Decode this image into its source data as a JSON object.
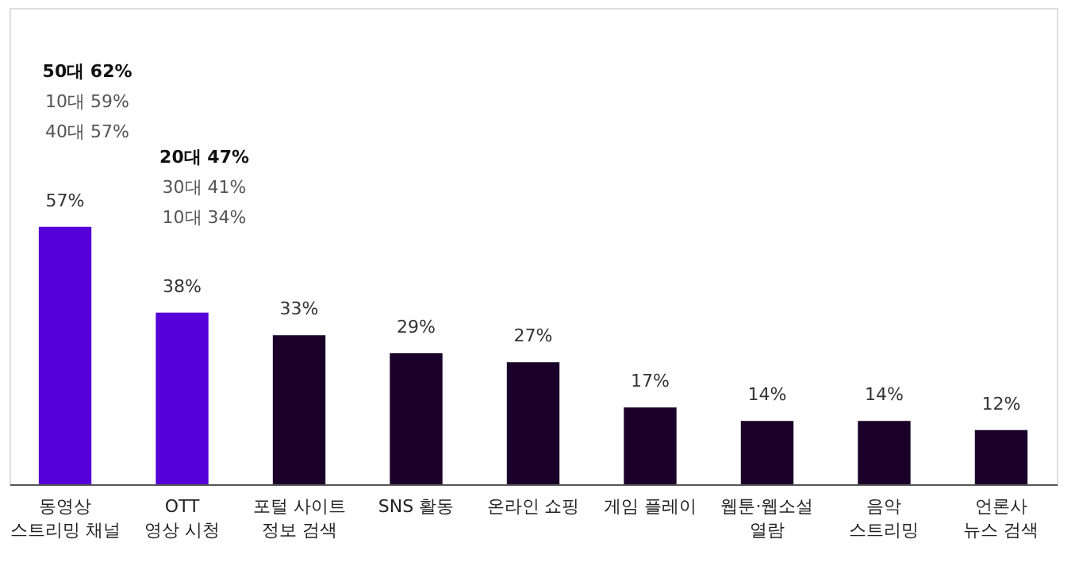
{
  "chart_data": {
    "type": "bar",
    "categories": [
      "동영상\n스트리밍 채널",
      "OTT\n영상 시청",
      "포털 사이트\n정보 검색",
      "SNS 활동",
      "온라인 쇼핑",
      "게임 플레이",
      "웹툰·웹소설\n열람",
      "음악\n스트리밍",
      "언론사\n뉴스 검색"
    ],
    "values": [
      57,
      38,
      33,
      29,
      27,
      17,
      14,
      14,
      12
    ],
    "colors": [
      "#5500d9",
      "#5500d9",
      "#1a0028",
      "#1a0028",
      "#1a0028",
      "#1a0028",
      "#1a0028",
      "#1a0028",
      "#1a0028"
    ],
    "value_labels": [
      "57%",
      "38%",
      "33%",
      "29%",
      "27%",
      "17%",
      "14%",
      "14%",
      "12%"
    ],
    "annotations": [
      "50대 62%",
      "10대 59%",
      "40대 57%",
      "20대 47%",
      "30대 41%",
      "10대 34%"
    ]
  }
}
